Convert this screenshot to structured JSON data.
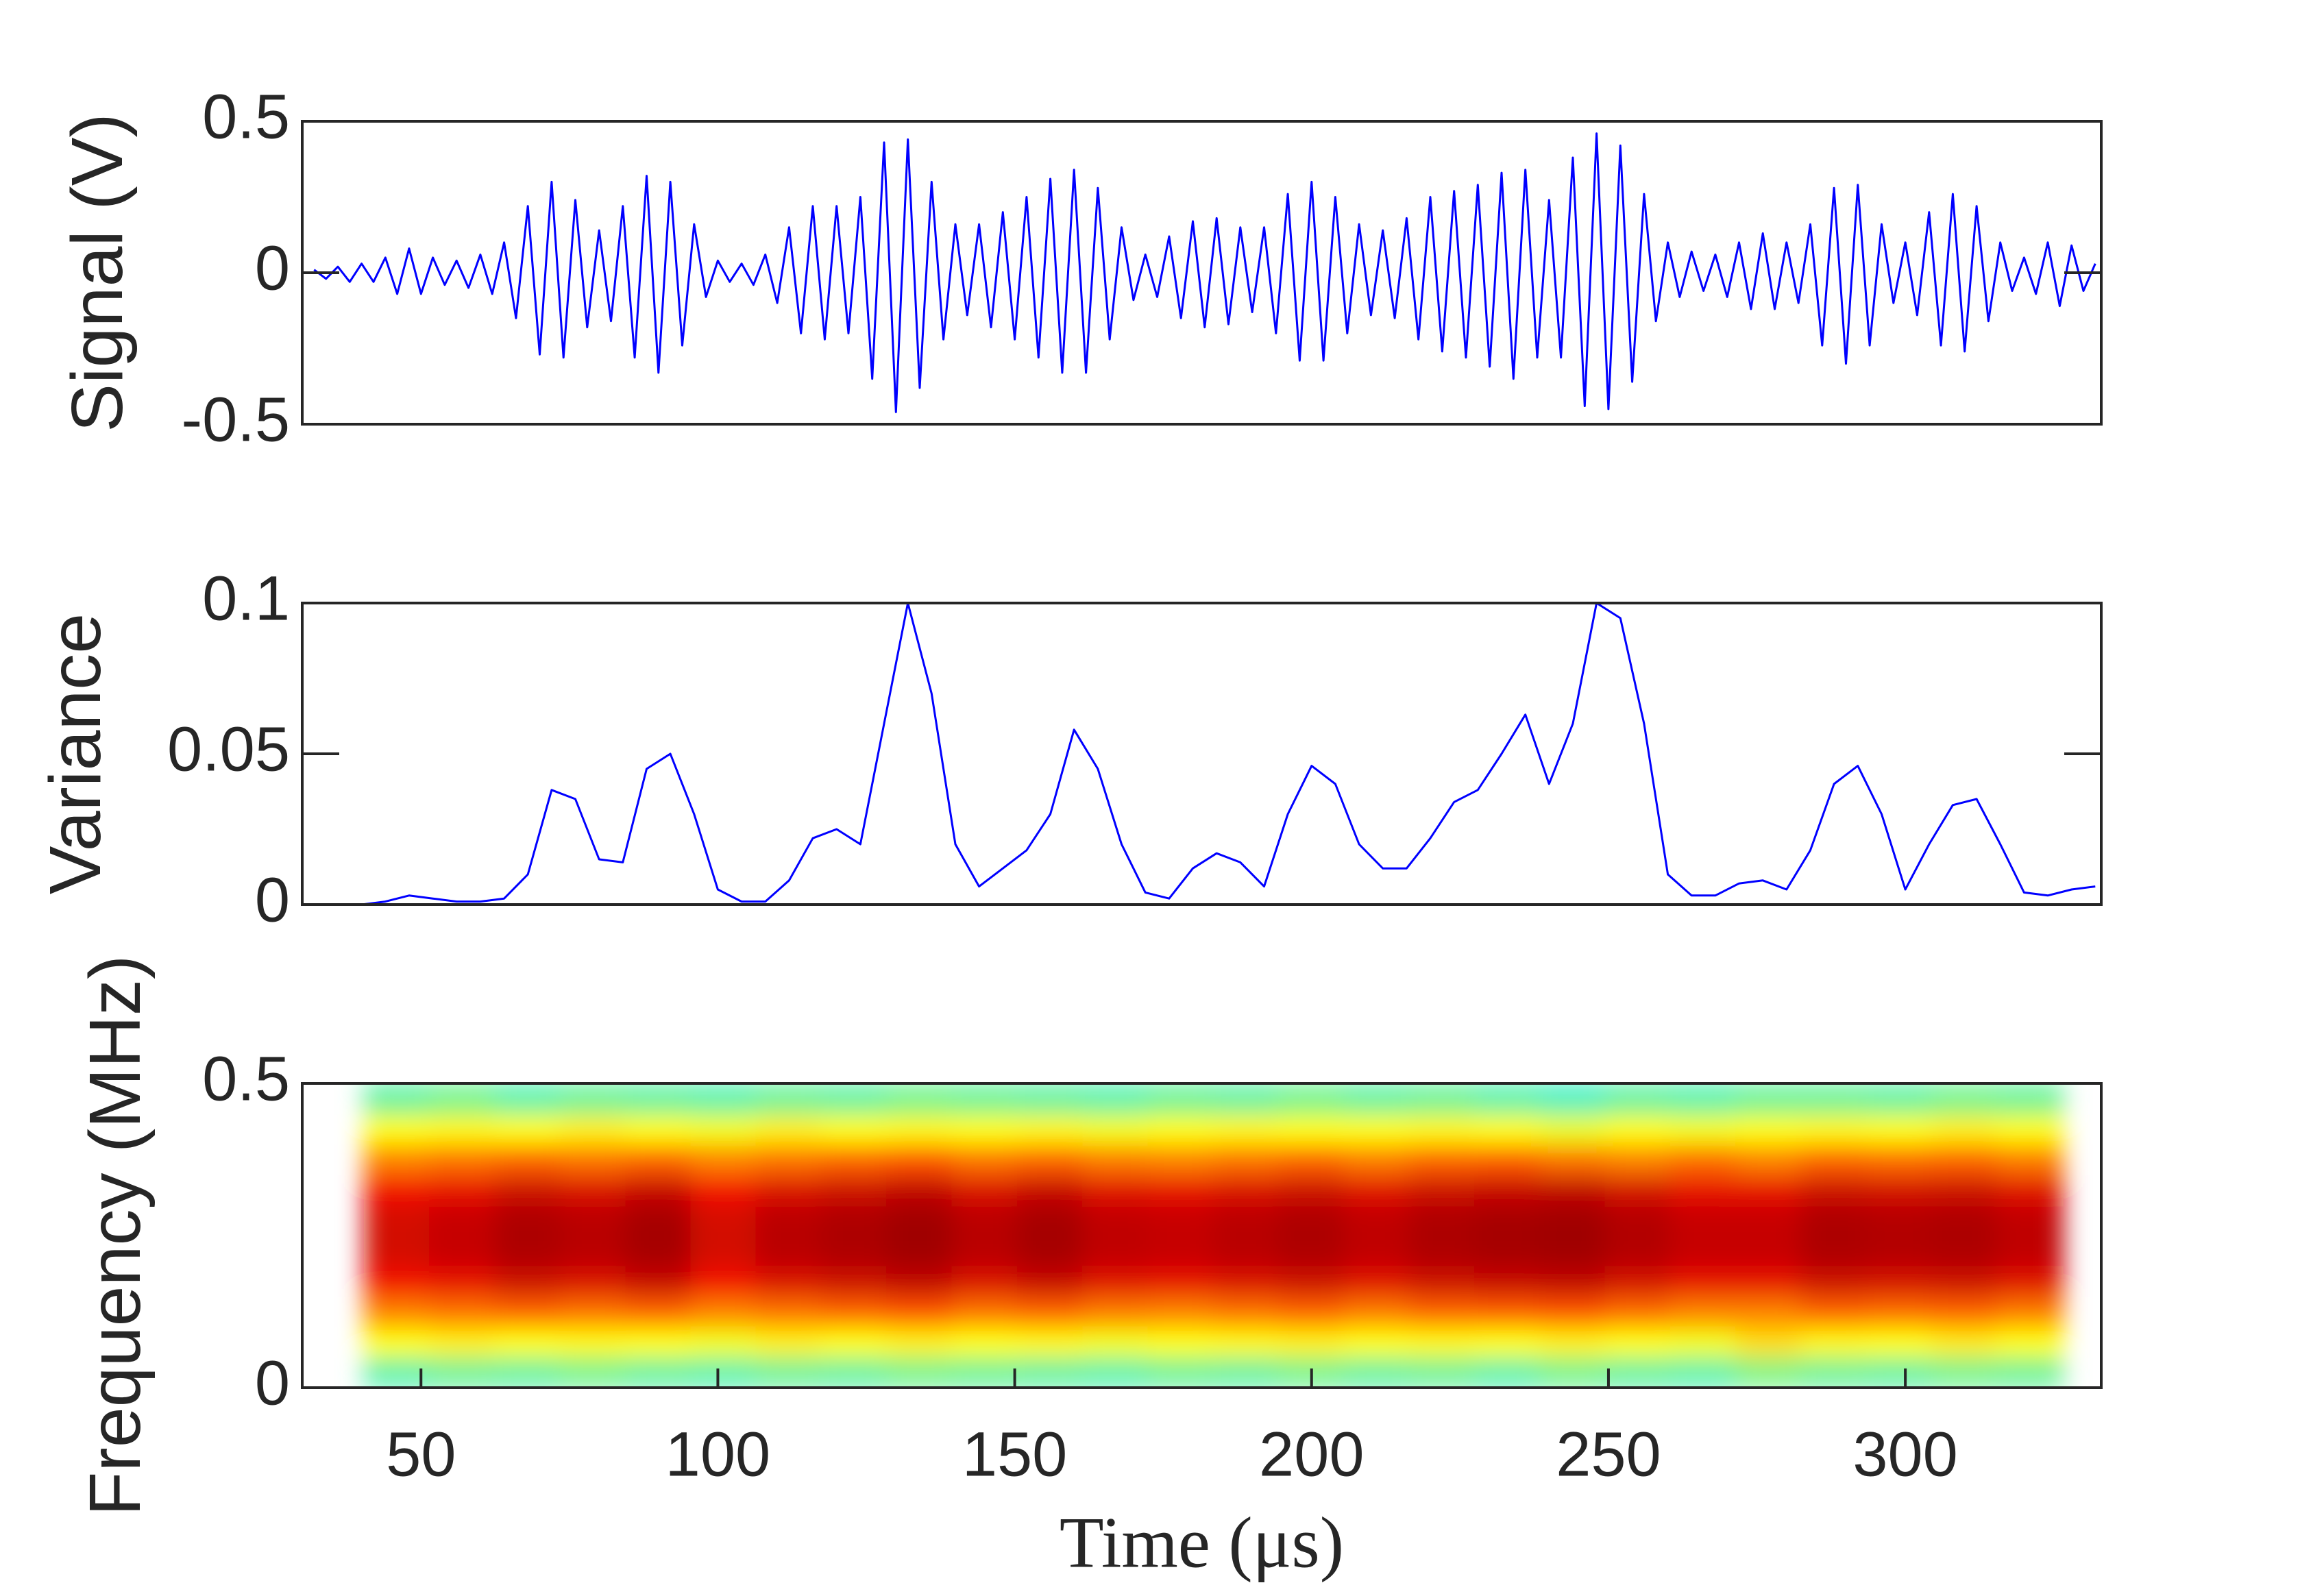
{
  "chart_data": [
    {
      "type": "line",
      "ylabel": "Signal (V)",
      "color": "#0000ff",
      "xlim": [
        30,
        333
      ],
      "ylim": [
        -0.5,
        0.5
      ],
      "yticks": [
        -0.5,
        0,
        0.5
      ],
      "x": [
        32,
        34,
        36,
        38,
        40,
        42,
        44,
        46,
        48,
        50,
        52,
        54,
        56,
        58,
        60,
        62,
        64,
        66,
        68,
        70,
        72,
        74,
        76,
        78,
        80,
        82,
        84,
        86,
        88,
        90,
        92,
        94,
        96,
        98,
        100,
        102,
        104,
        106,
        108,
        110,
        112,
        114,
        116,
        118,
        120,
        122,
        124,
        126,
        128,
        130,
        132,
        134,
        136,
        138,
        140,
        142,
        144,
        146,
        148,
        150,
        152,
        154,
        156,
        158,
        160,
        162,
        164,
        166,
        168,
        170,
        172,
        174,
        176,
        178,
        180,
        182,
        184,
        186,
        188,
        190,
        192,
        194,
        196,
        198,
        200,
        202,
        204,
        206,
        208,
        210,
        212,
        214,
        216,
        218,
        220,
        222,
        224,
        226,
        228,
        230,
        232,
        234,
        236,
        238,
        240,
        242,
        244,
        246,
        248,
        250,
        252,
        254,
        256,
        258,
        260,
        262,
        264,
        266,
        268,
        270,
        272,
        274,
        276,
        278,
        280,
        282,
        284,
        286,
        288,
        290,
        292,
        294,
        296,
        298,
        300,
        302,
        304,
        306,
        308,
        310,
        312,
        314,
        316,
        318,
        320,
        322,
        324,
        326,
        328,
        330,
        332
      ],
      "values": [
        0.01,
        -0.02,
        0.02,
        -0.03,
        0.03,
        -0.03,
        0.05,
        -0.07,
        0.08,
        -0.07,
        0.05,
        -0.04,
        0.04,
        -0.05,
        0.06,
        -0.07,
        0.1,
        -0.15,
        0.22,
        -0.27,
        0.3,
        -0.28,
        0.24,
        -0.18,
        0.14,
        -0.16,
        0.22,
        -0.28,
        0.32,
        -0.33,
        0.3,
        -0.24,
        0.16,
        -0.08,
        0.04,
        -0.03,
        0.03,
        -0.04,
        0.06,
        -0.1,
        0.15,
        -0.2,
        0.22,
        -0.22,
        0.22,
        -0.2,
        0.25,
        -0.35,
        0.43,
        -0.46,
        0.44,
        -0.38,
        0.3,
        -0.22,
        0.16,
        -0.14,
        0.16,
        -0.18,
        0.2,
        -0.22,
        0.25,
        -0.28,
        0.31,
        -0.33,
        0.34,
        -0.33,
        0.28,
        -0.22,
        0.15,
        -0.09,
        0.06,
        -0.08,
        0.12,
        -0.15,
        0.17,
        -0.18,
        0.18,
        -0.17,
        0.15,
        -0.13,
        0.15,
        -0.2,
        0.26,
        -0.29,
        0.3,
        -0.29,
        0.25,
        -0.2,
        0.16,
        -0.14,
        0.14,
        -0.15,
        0.18,
        -0.22,
        0.25,
        -0.26,
        0.27,
        -0.28,
        0.29,
        -0.31,
        0.33,
        -0.35,
        0.34,
        -0.28,
        0.24,
        -0.28,
        0.38,
        -0.44,
        0.46,
        -0.45,
        0.42,
        -0.36,
        0.26,
        -0.16,
        0.1,
        -0.08,
        0.07,
        -0.06,
        0.06,
        -0.08,
        0.1,
        -0.12,
        0.13,
        -0.12,
        0.1,
        -0.1,
        0.16,
        -0.24,
        0.28,
        -0.3,
        0.29,
        -0.24,
        0.16,
        -0.1,
        0.1,
        -0.14,
        0.2,
        -0.24,
        0.26,
        -0.26,
        0.22,
        -0.16,
        0.1,
        -0.06,
        0.05,
        -0.07,
        0.1,
        -0.11,
        0.09,
        -0.06,
        0.03
      ]
    },
    {
      "type": "line",
      "ylabel": "Variance",
      "color": "#0000ff",
      "xlim": [
        30,
        333
      ],
      "ylim": [
        0,
        0.1
      ],
      "yticks": [
        0,
        0.05,
        0.1
      ],
      "x": [
        32,
        36,
        40,
        44,
        48,
        52,
        56,
        60,
        64,
        68,
        72,
        76,
        80,
        84,
        88,
        92,
        96,
        100,
        104,
        108,
        112,
        116,
        120,
        124,
        128,
        132,
        136,
        140,
        144,
        148,
        152,
        156,
        160,
        164,
        168,
        172,
        176,
        180,
        184,
        188,
        192,
        196,
        200,
        204,
        208,
        212,
        216,
        220,
        224,
        228,
        232,
        236,
        240,
        244,
        248,
        252,
        256,
        260,
        264,
        268,
        272,
        276,
        280,
        284,
        288,
        292,
        296,
        300,
        304,
        308,
        312,
        316,
        320,
        324,
        328,
        332
      ],
      "values": [
        0,
        0,
        0,
        0.001,
        0.003,
        0.002,
        0.001,
        0.001,
        0.002,
        0.01,
        0.038,
        0.035,
        0.015,
        0.014,
        0.045,
        0.05,
        0.03,
        0.005,
        0.001,
        0.001,
        0.008,
        0.022,
        0.025,
        0.02,
        0.06,
        0.1,
        0.07,
        0.02,
        0.006,
        0.012,
        0.018,
        0.03,
        0.058,
        0.045,
        0.02,
        0.004,
        0.002,
        0.012,
        0.017,
        0.014,
        0.006,
        0.03,
        0.046,
        0.04,
        0.02,
        0.012,
        0.012,
        0.022,
        0.034,
        0.038,
        0.05,
        0.063,
        0.04,
        0.06,
        0.1,
        0.095,
        0.06,
        0.01,
        0.003,
        0.003,
        0.007,
        0.008,
        0.005,
        0.018,
        0.04,
        0.046,
        0.03,
        0.005,
        0.02,
        0.033,
        0.035,
        0.02,
        0.004,
        0.003,
        0.005,
        0.006
      ]
    },
    {
      "type": "heatmap",
      "ylabel": "Frequency (MHz)",
      "xlabel": "Time (μs)",
      "xlim": [
        30,
        333
      ],
      "ylim": [
        0,
        0.5
      ],
      "yticks": [
        0,
        0.5
      ],
      "xticks": [
        50,
        100,
        150,
        200,
        250,
        300
      ],
      "colorscale": [
        [
          0,
          "#00c8ff"
        ],
        [
          0.3,
          "#40f0c0"
        ],
        [
          0.5,
          "#ffff00"
        ],
        [
          0.7,
          "#ff8000"
        ],
        [
          0.85,
          "#ff1000"
        ],
        [
          1,
          "#a00000"
        ]
      ],
      "x": [
        46,
        57,
        68,
        79,
        90,
        101,
        112,
        123,
        134,
        145,
        156,
        167,
        178,
        189,
        200,
        211,
        222,
        233,
        244,
        255,
        266,
        277,
        288,
        299,
        310,
        321
      ],
      "y": [
        0.025,
        0.075,
        0.125,
        0.175,
        0.225,
        0.275,
        0.325,
        0.375,
        0.425,
        0.475
      ],
      "z": [
        [
          0.32,
          0.34,
          0.33,
          0.35,
          0.33,
          0.32,
          0.34,
          0.33,
          0.35,
          0.34,
          0.33,
          0.32,
          0.34,
          0.33,
          0.35,
          0.33,
          0.34,
          0.32,
          0.35,
          0.33,
          0.32,
          0.36,
          0.34,
          0.33,
          0.35,
          0.34
        ],
        [
          0.5,
          0.52,
          0.5,
          0.51,
          0.5,
          0.49,
          0.52,
          0.5,
          0.52,
          0.5,
          0.51,
          0.49,
          0.5,
          0.51,
          0.52,
          0.5,
          0.51,
          0.5,
          0.52,
          0.5,
          0.49,
          0.55,
          0.51,
          0.5,
          0.53,
          0.5
        ],
        [
          0.7,
          0.72,
          0.74,
          0.72,
          0.74,
          0.7,
          0.72,
          0.74,
          0.76,
          0.72,
          0.74,
          0.71,
          0.7,
          0.72,
          0.74,
          0.71,
          0.74,
          0.75,
          0.76,
          0.73,
          0.7,
          0.7,
          0.74,
          0.73,
          0.74,
          0.71
        ],
        [
          0.87,
          0.89,
          0.93,
          0.91,
          0.94,
          0.87,
          0.91,
          0.93,
          0.95,
          0.91,
          0.94,
          0.9,
          0.89,
          0.91,
          0.93,
          0.9,
          0.93,
          0.94,
          0.95,
          0.92,
          0.89,
          0.89,
          0.93,
          0.92,
          0.93,
          0.9
        ],
        [
          0.92,
          0.94,
          0.98,
          0.96,
          0.99,
          0.92,
          0.96,
          0.98,
          1,
          0.96,
          0.99,
          0.95,
          0.94,
          0.96,
          0.98,
          0.95,
          0.98,
          0.99,
          1,
          0.97,
          0.94,
          0.94,
          0.98,
          0.97,
          0.98,
          0.95
        ],
        [
          0.92,
          0.94,
          0.98,
          0.96,
          0.99,
          0.92,
          0.96,
          0.98,
          1,
          0.96,
          0.99,
          0.95,
          0.94,
          0.96,
          0.98,
          0.95,
          0.98,
          0.99,
          1,
          0.97,
          0.94,
          0.94,
          0.98,
          0.97,
          0.98,
          0.95
        ],
        [
          0.87,
          0.89,
          0.93,
          0.91,
          0.94,
          0.87,
          0.91,
          0.93,
          0.95,
          0.91,
          0.94,
          0.9,
          0.89,
          0.91,
          0.93,
          0.9,
          0.93,
          0.94,
          0.95,
          0.92,
          0.89,
          0.89,
          0.93,
          0.92,
          0.93,
          0.9
        ],
        [
          0.7,
          0.72,
          0.74,
          0.72,
          0.74,
          0.7,
          0.72,
          0.74,
          0.76,
          0.72,
          0.74,
          0.71,
          0.7,
          0.72,
          0.74,
          0.71,
          0.74,
          0.75,
          0.72,
          0.7,
          0.73,
          0.7,
          0.74,
          0.73,
          0.74,
          0.71
        ],
        [
          0.5,
          0.51,
          0.5,
          0.52,
          0.5,
          0.49,
          0.52,
          0.5,
          0.51,
          0.5,
          0.51,
          0.49,
          0.5,
          0.51,
          0.5,
          0.5,
          0.51,
          0.5,
          0.48,
          0.5,
          0.49,
          0.5,
          0.51,
          0.5,
          0.52,
          0.5
        ],
        [
          0.33,
          0.35,
          0.32,
          0.34,
          0.33,
          0.32,
          0.34,
          0.33,
          0.35,
          0.34,
          0.33,
          0.32,
          0.34,
          0.33,
          0.35,
          0.33,
          0.34,
          0.32,
          0.3,
          0.33,
          0.32,
          0.34,
          0.34,
          0.33,
          0.35,
          0.34
        ]
      ]
    }
  ]
}
